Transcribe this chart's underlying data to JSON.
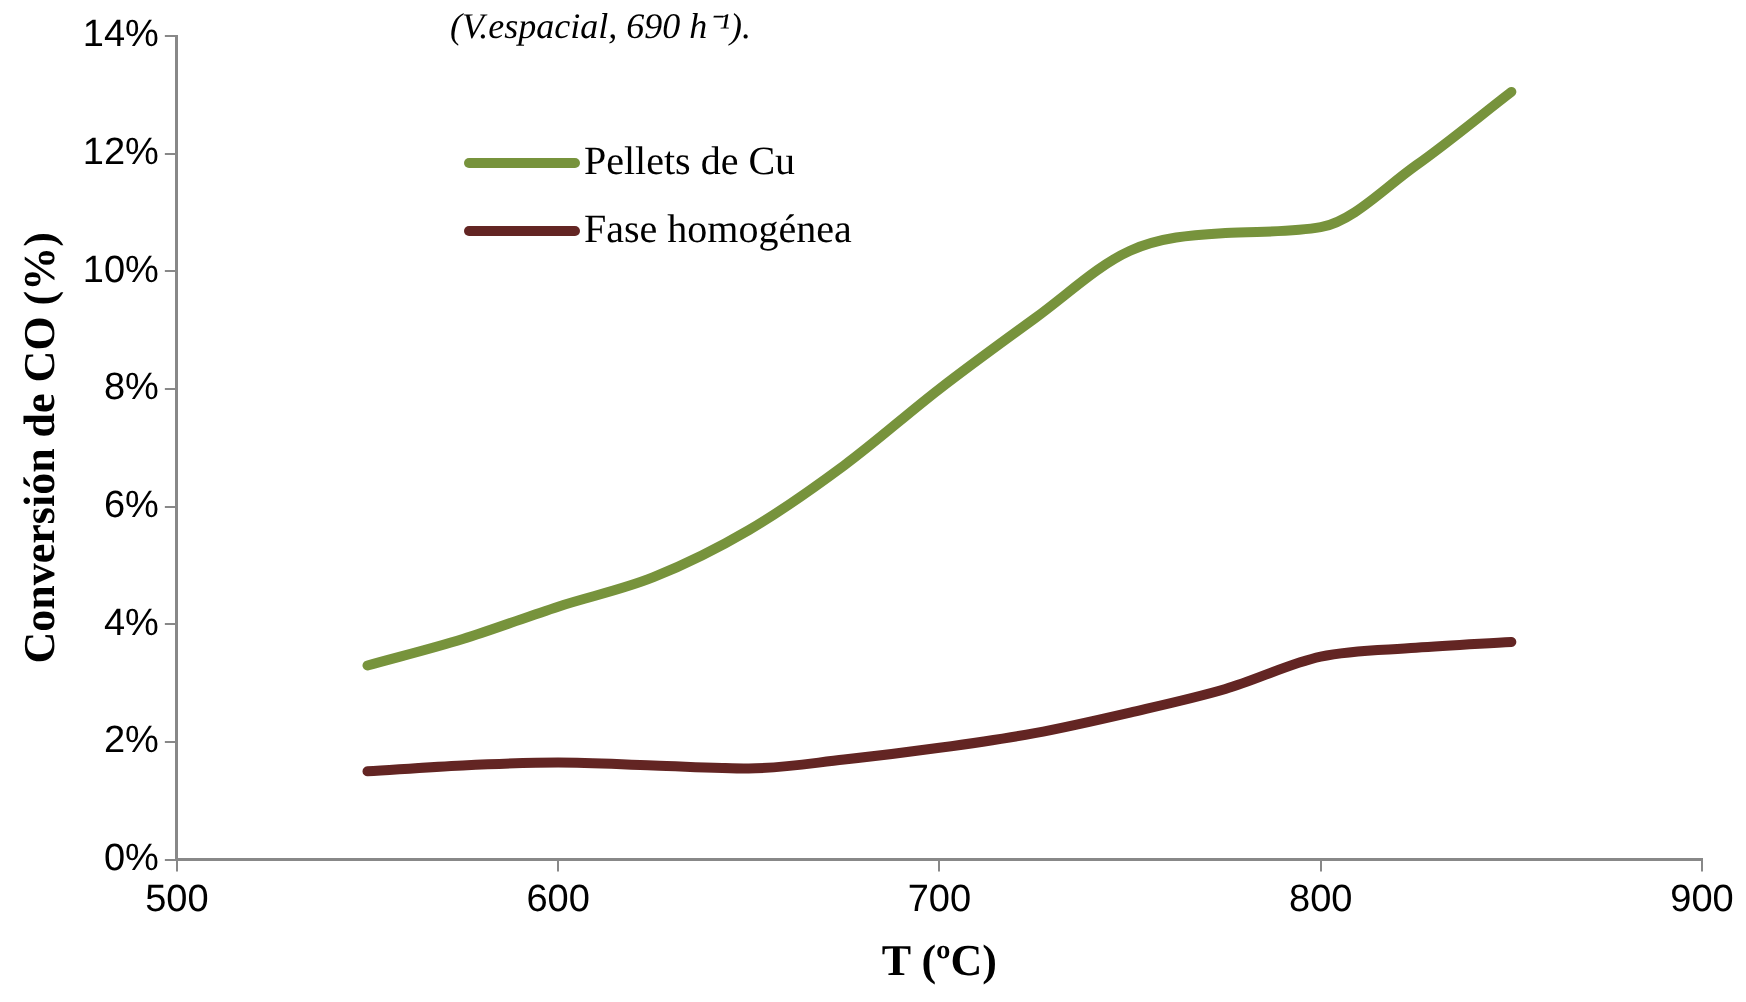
{
  "chart_data": {
    "type": "line",
    "annotations": [
      "(V.espacial, 690 h⁻¹)."
    ],
    "xlabel": "T (ºC)",
    "ylabel": "Conversión de CO (%)",
    "xlim": [
      500,
      900
    ],
    "xticks": [
      500,
      600,
      700,
      800,
      900
    ],
    "ylim": [
      0,
      14
    ],
    "yticks": [
      {
        "value": 0,
        "label": "0%"
      },
      {
        "value": 2,
        "label": "2%"
      },
      {
        "value": 4,
        "label": "4%"
      },
      {
        "value": 6,
        "label": "6%"
      },
      {
        "value": 8,
        "label": "8%"
      },
      {
        "value": 10,
        "label": "10%"
      },
      {
        "value": 12,
        "label": "12%"
      },
      {
        "value": 14,
        "label": "14%"
      }
    ],
    "x": [
      550,
      575,
      600,
      625,
      650,
      675,
      700,
      725,
      750,
      775,
      800,
      825,
      850
    ],
    "grid": false,
    "legend": "top left",
    "marker": "none",
    "line_style": "solid",
    "series": [
      {
        "name": "Pellets de Cu",
        "color": "#77933c",
        "values": [
          3.3,
          3.75,
          4.3,
          4.8,
          5.6,
          6.7,
          8.0,
          9.2,
          10.35,
          10.65,
          10.75,
          11.8,
          13.05
        ]
      },
      {
        "name": "Fase homogénea",
        "color": "#632523",
        "values": [
          1.5,
          1.6,
          1.65,
          1.6,
          1.55,
          1.7,
          1.9,
          2.15,
          2.5,
          2.9,
          3.45,
          3.6,
          3.7
        ]
      }
    ]
  }
}
